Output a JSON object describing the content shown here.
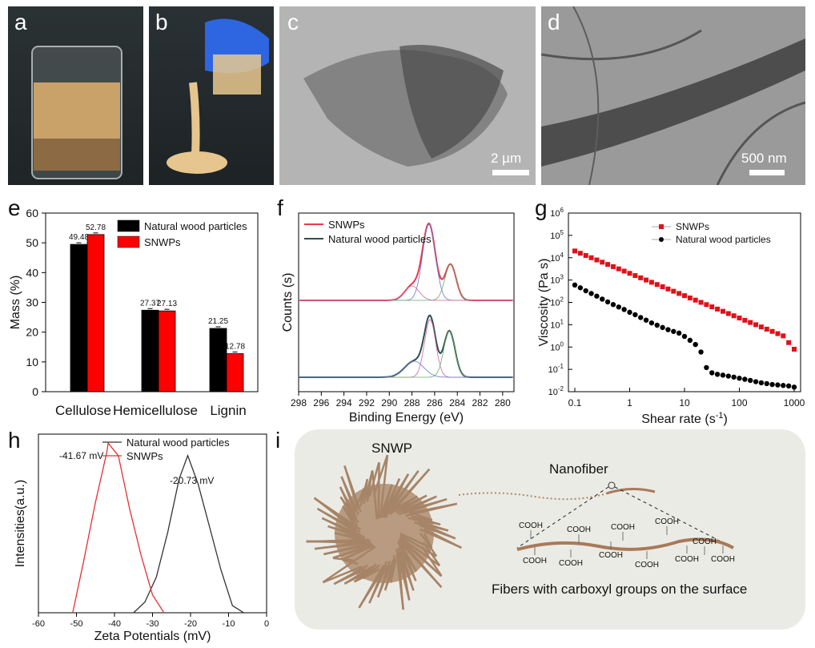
{
  "labels": {
    "a": "a",
    "b": "b",
    "c": "c",
    "d": "d",
    "e": "e",
    "f": "f",
    "g": "g",
    "h": "h",
    "i": "i"
  },
  "scalebars": {
    "c": "2 µm",
    "d": "500 nm"
  },
  "chart_data": [
    {
      "panel": "e",
      "type": "bar",
      "categories": [
        "Cellulose",
        "Hemicellulose",
        "Lignin"
      ],
      "series": [
        {
          "name": "Natural wood particles",
          "values": [
            49.48,
            27.37,
            21.25
          ],
          "color": "#000000"
        },
        {
          "name": "SNWPs",
          "values": [
            52.78,
            27.13,
            12.78
          ],
          "color": "#ff0000"
        }
      ],
      "data_labels": [
        [
          "49.48",
          "27.37",
          "21.25"
        ],
        [
          "52.78",
          "27.13",
          "12.78"
        ]
      ],
      "ylabel": "Mass (%)",
      "ylim": [
        0,
        60
      ],
      "yticks": [
        0,
        10,
        20,
        30,
        40,
        50,
        60
      ],
      "legend": "top-right"
    },
    {
      "panel": "f",
      "type": "line",
      "xlabel": "Binding Energy (eV)",
      "ylabel": "Counts (s)",
      "xlim": [
        298,
        279
      ],
      "xticks": [
        298,
        296,
        294,
        292,
        290,
        288,
        286,
        284,
        282,
        280
      ],
      "series": [
        {
          "name": "SNWPs",
          "color": "#e8394a"
        },
        {
          "name": "Natural wood particles",
          "color": "#2f4f4f"
        }
      ],
      "legend": "top-left"
    },
    {
      "panel": "g",
      "type": "scatter",
      "yscale": "log",
      "xscale": "log",
      "xlabel": "Shear rate (s",
      "xlabel_sup": "-1",
      "xlabel_end": ")",
      "ylabel": "Viscosity (Pa s)",
      "xticks": [
        "0.1",
        "1",
        "10",
        "100",
        "1000"
      ],
      "yticks": [
        -2,
        -1,
        0,
        1,
        2,
        3,
        4,
        5,
        6
      ],
      "series": [
        {
          "name": "SNWPs",
          "color": "#e0101a",
          "marker": "square",
          "x": [
            0.1,
            0.1259,
            0.1585,
            0.1995,
            0.2512,
            0.3162,
            0.3981,
            0.5012,
            0.631,
            0.7943,
            1,
            1.259,
            1.585,
            1.995,
            2.512,
            3.162,
            3.981,
            5.012,
            6.31,
            7.943,
            10,
            12.59,
            15.85,
            19.95,
            25.12,
            31.62,
            39.81,
            50.12,
            63.1,
            79.43,
            100,
            125.9,
            158.5,
            199.5,
            251.2,
            316.2,
            398.1,
            501.2,
            631,
            794.3,
            1000
          ],
          "y": [
            20000,
            15850,
            12590,
            10000,
            7943,
            6310,
            5012,
            3981,
            3162,
            2512,
            1995,
            1585,
            1259,
            1000,
            794,
            631,
            501,
            398,
            316,
            251,
            200,
            158,
            126,
            100,
            79.4,
            63.1,
            50.1,
            39.8,
            31.6,
            25.1,
            20,
            15.8,
            12.6,
            10,
            7.94,
            6.31,
            5.01,
            3.98,
            3.16,
            1.58,
            0.8
          ]
        },
        {
          "name": "Natural wood particles",
          "color": "#000000",
          "marker": "circle",
          "x": [
            0.1,
            0.1259,
            0.1585,
            0.1995,
            0.2512,
            0.3162,
            0.3981,
            0.5012,
            0.631,
            0.7943,
            1,
            1.259,
            1.585,
            1.995,
            2.512,
            3.162,
            3.981,
            5.012,
            6.31,
            7.943,
            10,
            12.59,
            15.85,
            19.95,
            25.12,
            31.62,
            39.81,
            50.12,
            63.1,
            79.43,
            100,
            125.9,
            158.5,
            199.5,
            251.2,
            316.2,
            398.1,
            501.2,
            631,
            794.3,
            1000
          ],
          "y": [
            600,
            450,
            330,
            250,
            190,
            140,
            105,
            80,
            62,
            48,
            36,
            28,
            21,
            16,
            12,
            9.5,
            7.5,
            6,
            5,
            4.2,
            3,
            2,
            1.3,
            0.6,
            0.12,
            0.07,
            0.06,
            0.055,
            0.05,
            0.045,
            0.04,
            0.036,
            0.032,
            0.028,
            0.025,
            0.023,
            0.021,
            0.02,
            0.019,
            0.018,
            0.016
          ]
        }
      ],
      "legend": "top-right"
    },
    {
      "panel": "h",
      "type": "line",
      "xlabel": "Zeta Potentials (mV)",
      "ylabel": "Intensities(a.u.)",
      "xlim": [
        -60,
        0
      ],
      "xticks": [
        -60,
        -50,
        -40,
        -30,
        -20,
        -10,
        0
      ],
      "series": [
        {
          "name": "Natural wood particles",
          "color": "#333333",
          "x": [
            -35,
            -32,
            -29,
            -26,
            -23,
            -20.73,
            -18,
            -15,
            -12,
            -9,
            -6
          ],
          "y": [
            0,
            0.06,
            0.2,
            0.45,
            0.75,
            0.88,
            0.72,
            0.48,
            0.24,
            0.04,
            0
          ]
        },
        {
          "name": "SNWPs",
          "color": "#e53030",
          "x": [
            -51,
            -48,
            -45,
            -42,
            -41.67,
            -39,
            -36,
            -33,
            -30,
            -27
          ],
          "y": [
            0,
            0.3,
            0.62,
            0.9,
            0.95,
            0.88,
            0.58,
            0.32,
            0.1,
            0
          ]
        }
      ],
      "annotations": [
        "-41.67 mV",
        "-20.73 mV"
      ],
      "legend": "top-right"
    }
  ],
  "panel_i": {
    "snwp": "SNWP",
    "nanofiber": "Nanofiber",
    "cooh": "COOH",
    "caption": "Fibers with carboxyl groups on the surface"
  }
}
